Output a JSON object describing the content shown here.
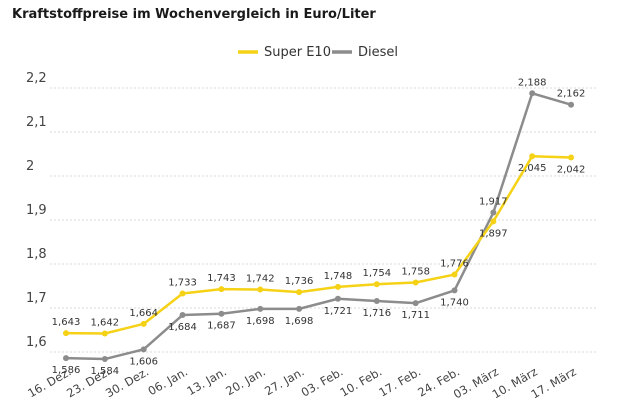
{
  "chart_data": {
    "type": "line",
    "title": "Kraftstoffpreise im Wochenvergleich in Euro/Liter",
    "categories": [
      "16. Dez.",
      "23. Dez.",
      "30. Dez.",
      "06. Jan.",
      "13. Jan.",
      "20. Jan.",
      "27. Jan.",
      "03. Feb.",
      "10. Feb.",
      "17. Feb.",
      "24. Feb.",
      "03. März",
      "10. März",
      "17. März"
    ],
    "series": [
      {
        "name": "Super E10",
        "color": "#f5d216",
        "values": [
          1.643,
          1.642,
          1.664,
          1.733,
          1.743,
          1.742,
          1.736,
          1.748,
          1.754,
          1.758,
          1.776,
          1.897,
          2.045,
          2.042
        ],
        "labels": [
          "1,643",
          "1,642",
          "1,664",
          "1,733",
          "1,743",
          "1,742",
          "1,736",
          "1,748",
          "1,754",
          "1,758",
          "1,776",
          "1,897",
          "2,045",
          "2,042"
        ]
      },
      {
        "name": "Diesel",
        "color": "#8c8c8c",
        "values": [
          1.586,
          1.584,
          1.606,
          1.684,
          1.687,
          1.698,
          1.698,
          1.721,
          1.716,
          1.711,
          1.74,
          1.917,
          2.188,
          2.162
        ],
        "labels": [
          "1,586",
          "1,584",
          "1,606",
          "1,684",
          "1,687",
          "1,698",
          "1,698",
          "1,721",
          "1,716",
          "1,711",
          "1,740",
          "1,917",
          "2,188",
          "2,162"
        ]
      }
    ],
    "yticks": [
      {
        "value": 1.6,
        "label": "1,6"
      },
      {
        "value": 1.7,
        "label": "1,7"
      },
      {
        "value": 1.8,
        "label": "1,8"
      },
      {
        "value": 1.9,
        "label": "1,9"
      },
      {
        "value": 2.0,
        "label": "2"
      },
      {
        "value": 2.1,
        "label": "2,1"
      },
      {
        "value": 2.2,
        "label": "2,2"
      }
    ],
    "ylim": [
      1.6,
      2.2
    ],
    "grid": true,
    "legend_position": "top-center"
  }
}
